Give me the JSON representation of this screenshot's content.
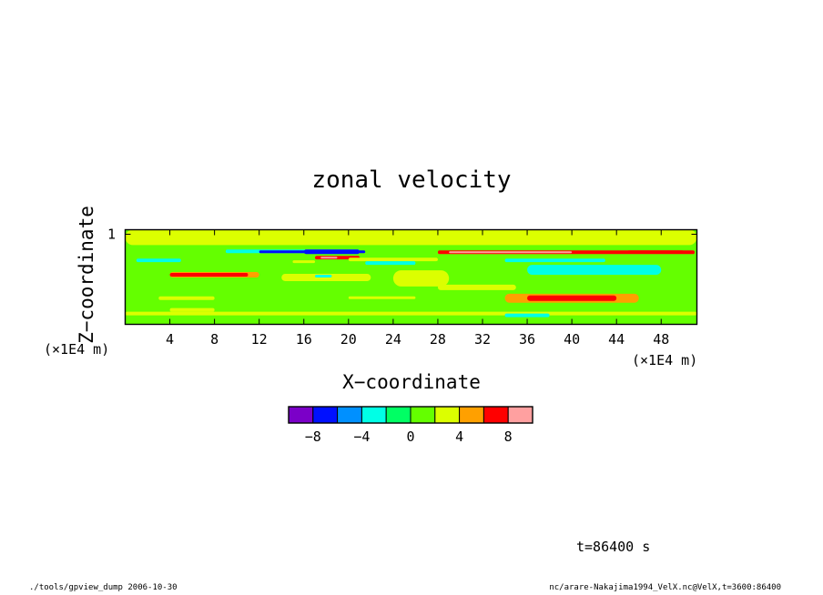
{
  "chart_data": {
    "type": "heatmap",
    "title": "zonal velocity",
    "xlabel": "X−coordinate",
    "ylabel": "Z−coordinate",
    "x_unit": "(×1E4 m)",
    "y_unit": "(×1E4 m)",
    "xlim": [
      0,
      51.2
    ],
    "ylim": [
      0,
      1.05
    ],
    "x_ticks": [
      "4",
      "8",
      "12",
      "16",
      "20",
      "24",
      "28",
      "32",
      "36",
      "40",
      "44",
      "48"
    ],
    "x_tick_values": [
      4,
      8,
      12,
      16,
      20,
      24,
      28,
      32,
      36,
      40,
      44,
      48
    ],
    "y_ticks": [
      "1"
    ],
    "y_tick_values": [
      1
    ],
    "background_value": 1,
    "regions": [
      {
        "x": [
          0,
          51.2
        ],
        "z": [
          0.0,
          0.1
        ],
        "v": 0
      },
      {
        "x": [
          0,
          51.2
        ],
        "z": [
          0.1,
          0.14
        ],
        "v": 3
      },
      {
        "x": [
          0,
          51.2
        ],
        "z": [
          0.88,
          1.05
        ],
        "v": 2
      },
      {
        "x": [
          0,
          51.2
        ],
        "z": [
          0.8,
          0.86
        ],
        "v": 0
      },
      {
        "x": [
          4,
          12
        ],
        "z": [
          0.52,
          0.58
        ],
        "v": 5
      },
      {
        "x": [
          4,
          11
        ],
        "z": [
          0.53,
          0.57
        ],
        "v": 6
      },
      {
        "x": [
          14,
          22
        ],
        "z": [
          0.48,
          0.56
        ],
        "v": 3
      },
      {
        "x": [
          36,
          48
        ],
        "z": [
          0.55,
          0.66
        ],
        "v": -3
      },
      {
        "x": [
          37,
          46
        ],
        "z": [
          0.57,
          0.64
        ],
        "v": -4
      },
      {
        "x": [
          34,
          43
        ],
        "z": [
          0.69,
          0.73
        ],
        "v": -3
      },
      {
        "x": [
          1,
          5
        ],
        "z": [
          0.69,
          0.73
        ],
        "v": -3
      },
      {
        "x": [
          34,
          46
        ],
        "z": [
          0.24,
          0.34
        ],
        "v": 5
      },
      {
        "x": [
          36,
          44
        ],
        "z": [
          0.26,
          0.32
        ],
        "v": 6
      },
      {
        "x": [
          28,
          35
        ],
        "z": [
          0.38,
          0.44
        ],
        "v": 3
      },
      {
        "x": [
          3,
          8
        ],
        "z": [
          0.27,
          0.31
        ],
        "v": 3
      },
      {
        "x": [
          20,
          26
        ],
        "z": [
          0.28,
          0.31
        ],
        "v": 3
      },
      {
        "x": [
          4,
          8
        ],
        "z": [
          0.14,
          0.18
        ],
        "v": 3
      },
      {
        "x": [
          34,
          38
        ],
        "z": [
          0.08,
          0.12
        ],
        "v": -3
      },
      {
        "x": [
          28,
          51
        ],
        "z": [
          0.78,
          0.82
        ],
        "v": 6
      },
      {
        "x": [
          29,
          40
        ],
        "z": [
          0.79,
          0.81
        ],
        "v": 8
      },
      {
        "x": [
          45,
          50
        ],
        "z": [
          0.79,
          0.82
        ],
        "v": 6
      },
      {
        "x": [
          9,
          21
        ],
        "z": [
          0.79,
          0.83
        ],
        "v": -4
      },
      {
        "x": [
          12,
          21.5
        ],
        "z": [
          0.79,
          0.82
        ],
        "v": -7
      },
      {
        "x": [
          16,
          21
        ],
        "z": [
          0.78,
          0.83
        ],
        "v": -8
      },
      {
        "x": [
          17,
          21
        ],
        "z": [
          0.72,
          0.76
        ],
        "v": 6
      },
      {
        "x": [
          17.5,
          19
        ],
        "z": [
          0.73,
          0.75
        ],
        "v": 8
      },
      {
        "x": [
          15,
          17
        ],
        "z": [
          0.68,
          0.71
        ],
        "v": 3
      },
      {
        "x": [
          20,
          28
        ],
        "z": [
          0.7,
          0.74
        ],
        "v": 3
      },
      {
        "x": [
          24,
          29
        ],
        "z": [
          0.42,
          0.6
        ],
        "v": 2
      },
      {
        "x": [
          21.5,
          26
        ],
        "z": [
          0.66,
          0.7
        ],
        "v": -3
      },
      {
        "x": [
          17,
          18.5
        ],
        "z": [
          0.52,
          0.55
        ],
        "v": -3
      }
    ],
    "colorbar": {
      "levels": [
        -10,
        -8,
        -6,
        -4,
        -2,
        0,
        2,
        4,
        6,
        8,
        10
      ],
      "tick_labels": [
        "−8",
        "−4",
        "0",
        "4",
        "8"
      ],
      "tick_values": [
        -8,
        -4,
        0,
        4,
        8
      ],
      "colors": [
        "#7b00c8",
        "#0010ff",
        "#0090ff",
        "#00ffe6",
        "#00ff64",
        "#64ff00",
        "#dcff00",
        "#ffa000",
        "#ff0000",
        "#ffa0a0"
      ]
    }
  },
  "annotations": {
    "time": "t=86400 s",
    "footer_left": "./tools/gpview_dump  2006-10-30",
    "footer_right": "nc/arare-Nakajima1994_VelX.nc@VelX,t=3600:86400"
  }
}
